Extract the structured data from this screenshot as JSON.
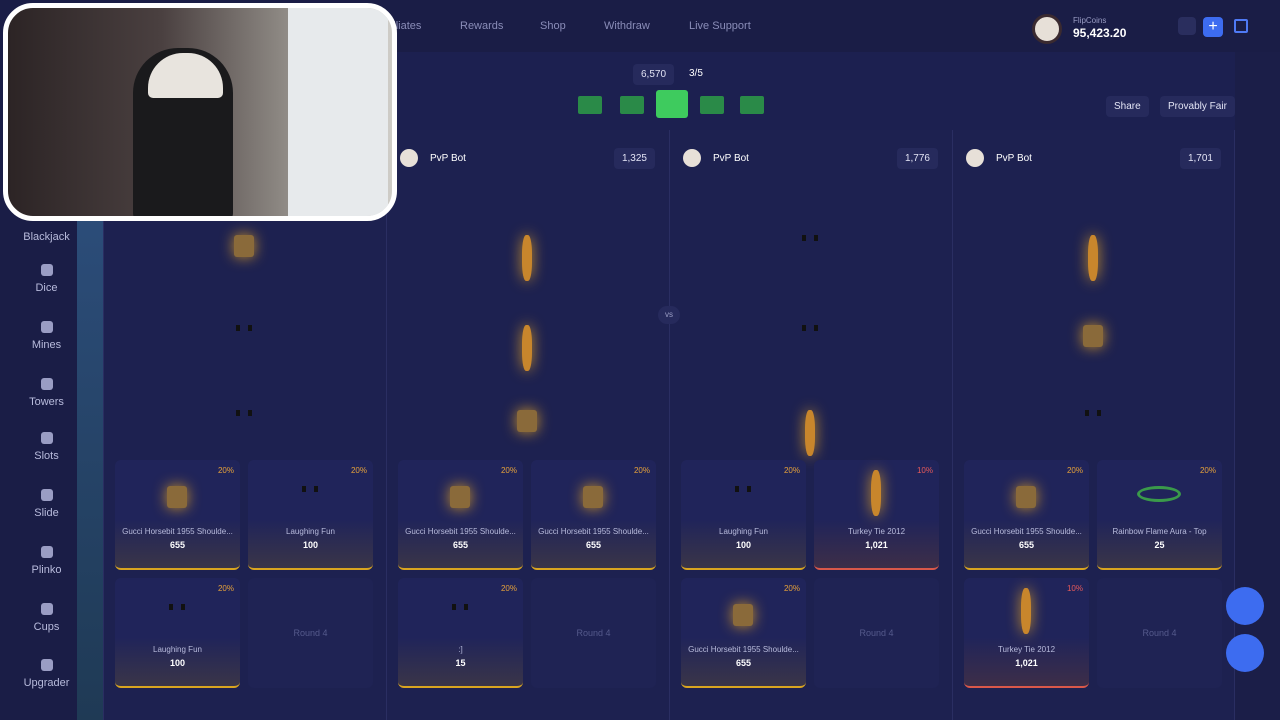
{
  "nav": {
    "links": [
      "Affiliates",
      "Rewards",
      "Shop",
      "Withdraw",
      "Live Support"
    ],
    "currency": "FlipCoins",
    "balance": "95,423.20"
  },
  "battle": {
    "cost": "6,570",
    "round": "3/5",
    "share": "Share",
    "fair": "Provably Fair",
    "vs": "vs",
    "players": [
      {
        "name": "PvP Bot",
        "total": "1,325"
      },
      {
        "name": "PvP Bot",
        "total": "1,776"
      },
      {
        "name": "PvP Bot",
        "total": "1,701"
      }
    ]
  },
  "sidebar": [
    "Blackjack",
    "Dice",
    "Mines",
    "Towers",
    "Slots",
    "Slide",
    "Plinko",
    "Cups",
    "Upgrader"
  ],
  "cards": [
    [
      {
        "name": "Gucci Horsebit 1955 Shoulde...",
        "value": "655",
        "chance": "20%"
      },
      {
        "name": "Laughing Fun",
        "value": "100",
        "chance": "20%"
      },
      {
        "name": "Gucci Horsebit 1955 Shoulde...",
        "value": "655",
        "chance": "20%"
      },
      {
        "name": "Gucci Horsebit 1955 Shoulde...",
        "value": "655",
        "chance": "20%"
      },
      {
        "name": "Laughing Fun",
        "value": "100",
        "chance": "20%"
      },
      {
        "name": "Turkey Tie 2012",
        "value": "1,021",
        "chance": "10%"
      },
      {
        "name": "Gucci Horsebit 1955 Shoulde...",
        "value": "655",
        "chance": "20%"
      },
      {
        "name": "Rainbow Flame Aura - Top",
        "value": "25",
        "chance": "20%"
      }
    ],
    [
      {
        "name": "Laughing Fun",
        "value": "100",
        "chance": "20%"
      },
      {
        "round": "Round 4"
      },
      {
        "name": ":]",
        "value": "15",
        "chance": "20%"
      },
      {
        "round": "Round 4"
      },
      {
        "name": "Gucci Horsebit 1955 Shoulde...",
        "value": "655",
        "chance": "20%"
      },
      {
        "round": "Round 4"
      },
      {
        "name": "Turkey Tie 2012",
        "value": "1,021",
        "chance": "10%"
      },
      {
        "round": "Round 4"
      }
    ]
  ]
}
